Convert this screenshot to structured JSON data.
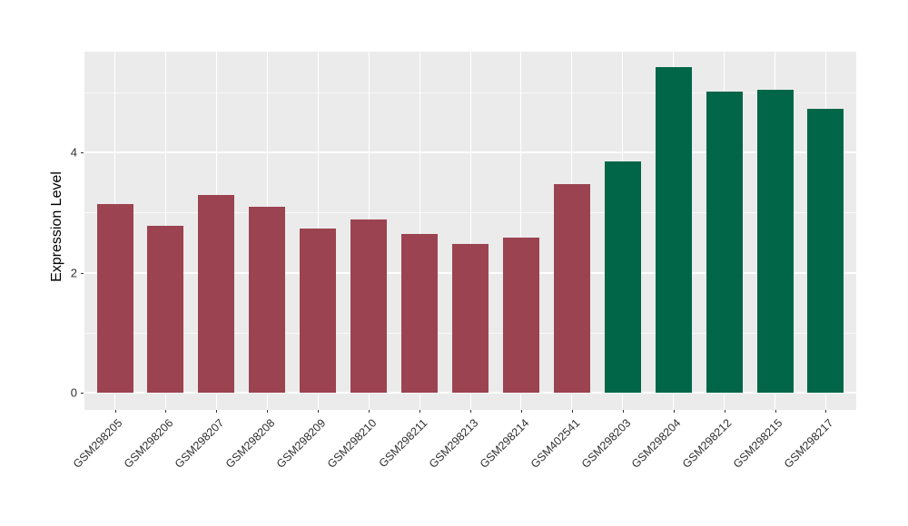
{
  "chart_data": {
    "type": "bar",
    "title": "",
    "xlabel": "",
    "ylabel": "Expression Level",
    "categories": [
      "GSM298205",
      "GSM298206",
      "GSM298207",
      "GSM298208",
      "GSM298209",
      "GSM298210",
      "GSM298211",
      "GSM298213",
      "GSM298214",
      "GSM402541",
      "GSM298203",
      "GSM298204",
      "GSM298212",
      "GSM298215",
      "GSM298217"
    ],
    "values": [
      3.15,
      2.78,
      3.29,
      3.1,
      2.74,
      2.89,
      2.65,
      2.48,
      2.58,
      3.47,
      3.85,
      5.42,
      5.02,
      5.04,
      4.73
    ],
    "bar_colors": [
      "#9c4351",
      "#9c4351",
      "#9c4351",
      "#9c4351",
      "#9c4351",
      "#9c4351",
      "#9c4351",
      "#9c4351",
      "#9c4351",
      "#9c4351",
      "#006647",
      "#006647",
      "#006647",
      "#006647",
      "#006647"
    ],
    "group_colors": {
      "first_group": "#9c4351",
      "second_group": "#006647"
    },
    "ytick_labels": [
      "0",
      "2",
      "4"
    ],
    "yticks": [
      0,
      2,
      4
    ],
    "minor_yticks": [
      1,
      3,
      5
    ],
    "ylim": [
      -0.28,
      5.68
    ],
    "grid": "on",
    "legend": "none",
    "panel_background": "#ebebeb",
    "grid_color": "#ffffff",
    "axis_text_color": "#303030"
  }
}
